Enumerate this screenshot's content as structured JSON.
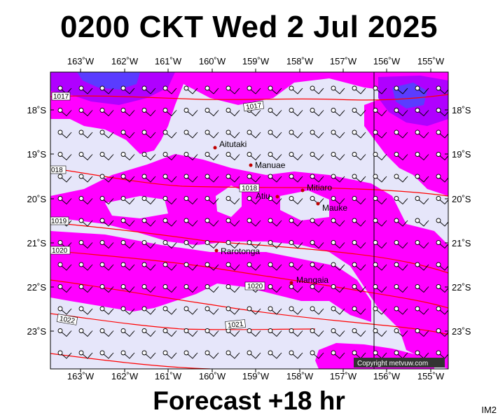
{
  "title": "0200 CKT Wed 2 Jul 2025",
  "footer": "Forecast +18 hr",
  "corner_label": "IM2",
  "copyright": "Copyright metvuw.com",
  "colors": {
    "background": "#ffffff",
    "lavender": "#e6e6fa",
    "magenta": "#ff00ff",
    "violet": "#b000ff",
    "blue": "#5a3cff",
    "isobar": "#ff0000",
    "place_dot": "#c00000"
  },
  "axes": {
    "lon_labels": [
      "163˚W",
      "162˚W",
      "161˚W",
      "160˚W",
      "159˚W",
      "158˚W",
      "157˚W",
      "156˚W",
      "155˚W"
    ],
    "lat_labels": [
      "18˚S",
      "19˚S",
      "20˚S",
      "21˚S",
      "22˚S",
      "23˚S"
    ]
  },
  "places": [
    {
      "name": "Aitutaki"
    },
    {
      "name": "Manuae"
    },
    {
      "name": "Mitiaro"
    },
    {
      "name": "Atiu"
    },
    {
      "name": "Mauke"
    },
    {
      "name": "Rarotonga"
    },
    {
      "name": "Mangaia"
    }
  ],
  "isobar_labels": [
    "1017",
    "1017",
    "018",
    "1018",
    "1019",
    "1020",
    "1020",
    "1021",
    "1022"
  ]
}
